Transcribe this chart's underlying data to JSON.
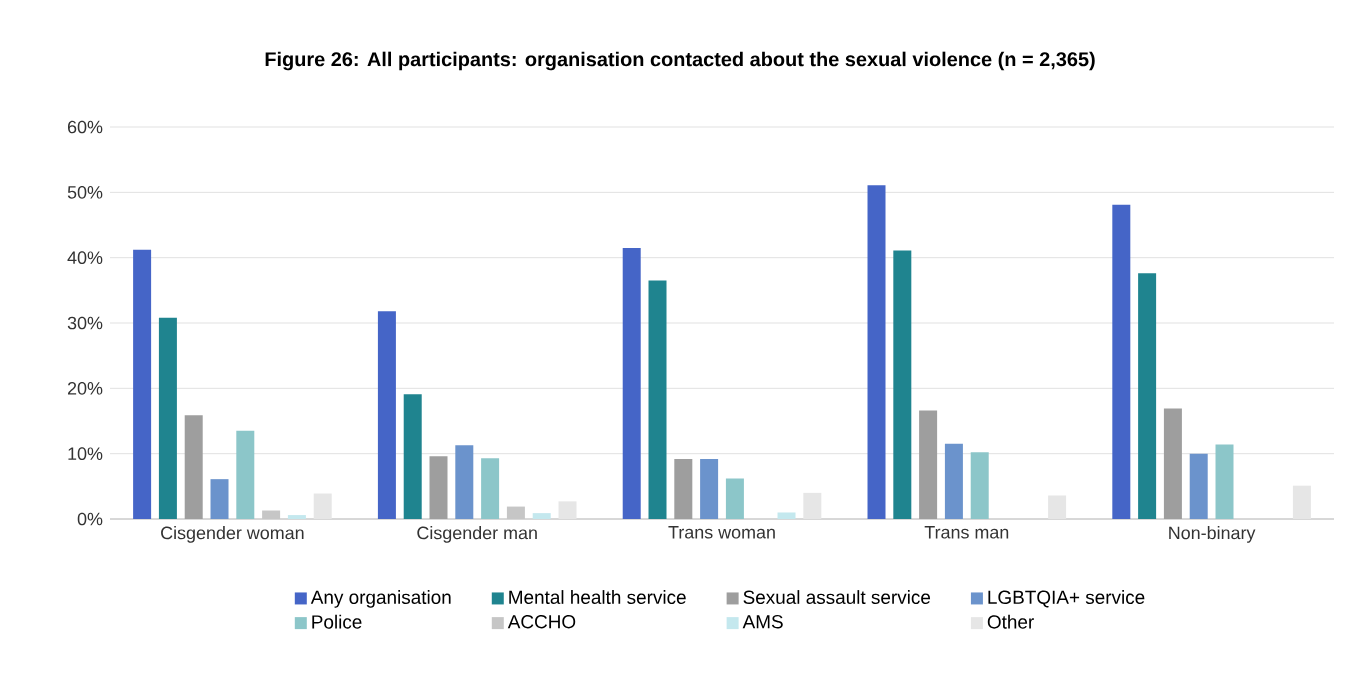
{
  "chart_data": {
    "type": "bar",
    "title": "Figure 26: All participants: organisation contacted about the sexual violence (n = 2,365)",
    "categories": [
      "Cisgender woman",
      "Cisgender man",
      "Trans woman",
      "Trans man",
      "Non-binary"
    ],
    "series": [
      {
        "name": "Any organisation",
        "color": "#4565c7",
        "values": [
          41.2,
          31.8,
          41.5,
          51.1,
          48.1
        ]
      },
      {
        "name": "Mental health service",
        "color": "#1f848f",
        "values": [
          30.8,
          19.1,
          36.5,
          41.1,
          37.6
        ]
      },
      {
        "name": "Sexual assault service",
        "color": "#9e9e9e",
        "values": [
          15.9,
          9.6,
          9.2,
          16.6,
          16.9
        ]
      },
      {
        "name": "LGBTQIA+ service",
        "color": "#6b93cc",
        "values": [
          6.1,
          11.3,
          9.2,
          11.5,
          10.0
        ]
      },
      {
        "name": "Police",
        "color": "#8cc6c9",
        "values": [
          13.5,
          9.3,
          6.2,
          10.2,
          11.4
        ]
      },
      {
        "name": "ACCHO",
        "color": "#c6c6c6",
        "values": [
          1.3,
          1.9,
          0,
          0,
          0
        ]
      },
      {
        "name": "AMS",
        "color": "#c4e8ee",
        "values": [
          0.6,
          0.9,
          1.0,
          0,
          0
        ]
      },
      {
        "name": "Other",
        "color": "#e6e6e6",
        "values": [
          3.9,
          2.7,
          4.0,
          3.6,
          5.1
        ]
      }
    ],
    "ylim": [
      0,
      60
    ],
    "yticks": [
      {
        "value": 0,
        "label": "0%"
      },
      {
        "value": 10,
        "label": "10%"
      },
      {
        "value": 20,
        "label": "20%"
      },
      {
        "value": 30,
        "label": "30%"
      },
      {
        "value": 40,
        "label": "40%"
      },
      {
        "value": 50,
        "label": "50%"
      },
      {
        "value": 60,
        "label": "60%"
      }
    ],
    "grid": "y",
    "legend": "bottom"
  }
}
